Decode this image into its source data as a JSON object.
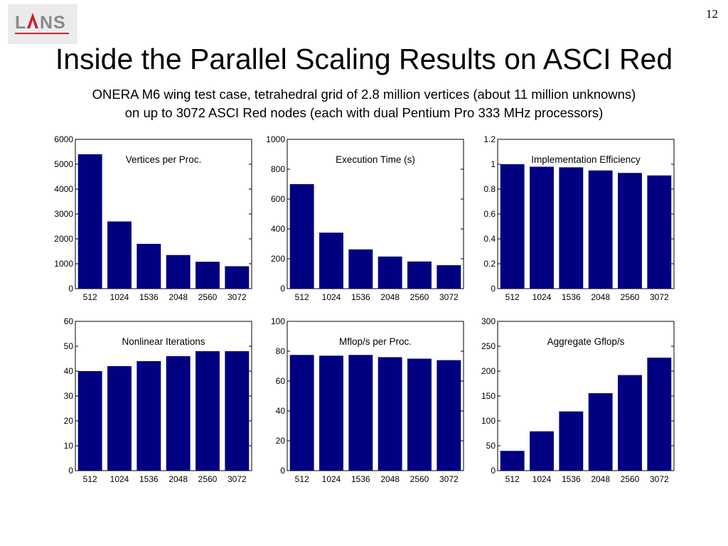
{
  "slide": {
    "logo_text": "LANS",
    "page_number": "12",
    "title": "Inside the Parallel Scaling Results on ASCI Red",
    "subtitle_line1": "ONERA M6 wing test case, tetrahedral grid of 2.8 million vertices (about 11 million unknowns)",
    "subtitle_line2": "on up to 3072 ASCI Red nodes (each with dual Pentium Pro 333 MHz processors)"
  },
  "colors": {
    "bar": "#000080",
    "axis": "#000000",
    "logo_red": "#c8202c",
    "logo_gray": "#8a8a8a"
  },
  "chart_data": [
    {
      "type": "bar",
      "title": "Vertices per Proc.",
      "categories": [
        "512",
        "1024",
        "1536",
        "2048",
        "2560",
        "3072"
      ],
      "values": [
        5400,
        2700,
        1800,
        1350,
        1080,
        900
      ],
      "ylim": [
        0,
        6000
      ],
      "yticks": [
        "0",
        "1000",
        "2000",
        "3000",
        "4000",
        "5000",
        "6000"
      ],
      "xlabel": "",
      "ylabel": ""
    },
    {
      "type": "bar",
      "title": "Execution Time (s)",
      "categories": [
        "512",
        "1024",
        "1536",
        "2048",
        "2560",
        "3072"
      ],
      "values": [
        700,
        375,
        263,
        215,
        182,
        157
      ],
      "ylim": [
        0,
        1000
      ],
      "yticks": [
        "0",
        "200",
        "400",
        "600",
        "800",
        "1000"
      ],
      "xlabel": "",
      "ylabel": ""
    },
    {
      "type": "bar",
      "title": "Implementation Efficiency",
      "categories": [
        "512",
        "1024",
        "1536",
        "2048",
        "2560",
        "3072"
      ],
      "values": [
        1.0,
        0.98,
        0.975,
        0.95,
        0.93,
        0.91
      ],
      "ylim": [
        0,
        1.2
      ],
      "yticks": [
        "0",
        "0.2",
        "0.4",
        "0.6",
        "0.8",
        "1",
        "1.2"
      ],
      "xlabel": "",
      "ylabel": ""
    },
    {
      "type": "bar",
      "title": "Nonlinear Iterations",
      "categories": [
        "512",
        "1024",
        "1536",
        "2048",
        "2560",
        "3072"
      ],
      "values": [
        40,
        42,
        44,
        46,
        48,
        48
      ],
      "ylim": [
        0,
        60
      ],
      "yticks": [
        "0",
        "10",
        "20",
        "30",
        "40",
        "50",
        "60"
      ],
      "xlabel": "",
      "ylabel": ""
    },
    {
      "type": "bar",
      "title": "Mflop/s per Proc.",
      "categories": [
        "512",
        "1024",
        "1536",
        "2048",
        "2560",
        "3072"
      ],
      "values": [
        77.5,
        77,
        77.5,
        76,
        75,
        74
      ],
      "ylim": [
        0,
        100
      ],
      "yticks": [
        "0",
        "20",
        "40",
        "60",
        "80",
        "100"
      ],
      "xlabel": "",
      "ylabel": ""
    },
    {
      "type": "bar",
      "title": "Aggregate Gflop/s",
      "categories": [
        "512",
        "1024",
        "1536",
        "2048",
        "2560",
        "3072"
      ],
      "values": [
        39.7,
        79,
        119,
        155.6,
        192,
        227
      ],
      "ylim": [
        0,
        300
      ],
      "yticks": [
        "0",
        "50",
        "100",
        "150",
        "200",
        "250",
        "300"
      ],
      "xlabel": "",
      "ylabel": ""
    }
  ]
}
